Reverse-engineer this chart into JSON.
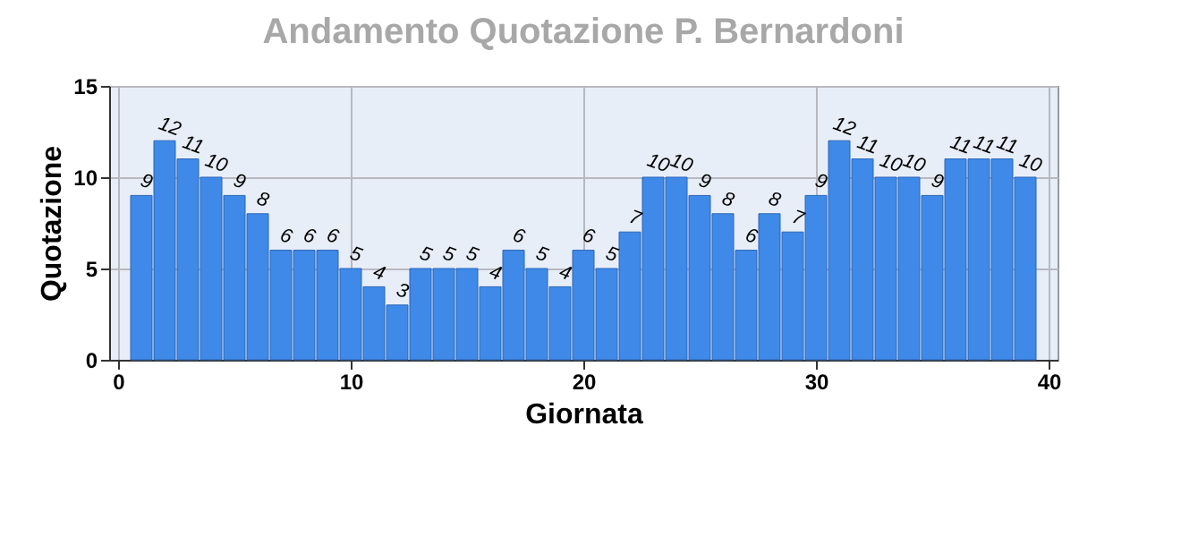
{
  "chart_data": {
    "type": "bar",
    "title": "Andamento Quotazione P. Bernardoni",
    "xlabel": "Giornata",
    "ylabel": "Quotazione",
    "x": [
      1,
      2,
      3,
      4,
      5,
      6,
      7,
      8,
      9,
      10,
      11,
      12,
      13,
      14,
      15,
      16,
      17,
      18,
      19,
      20,
      21,
      22,
      23,
      24,
      25,
      26,
      27,
      28,
      29,
      30,
      31,
      32,
      33,
      34,
      35,
      36,
      37,
      38,
      39
    ],
    "values": [
      9,
      12,
      11,
      10,
      9,
      8,
      6,
      6,
      6,
      5,
      4,
      3,
      5,
      5,
      5,
      4,
      6,
      5,
      4,
      6,
      5,
      7,
      10,
      10,
      9,
      8,
      6,
      8,
      7,
      9,
      12,
      11,
      10,
      10,
      9,
      11,
      11,
      11,
      10
    ],
    "color": "#3f8ae8",
    "xlim": [
      0,
      40
    ],
    "xticks": [
      0,
      10,
      20,
      30,
      40
    ],
    "ylim": [
      0,
      15
    ],
    "yticks": [
      0,
      5,
      10,
      15
    ],
    "grid": true,
    "data_labels": true
  }
}
